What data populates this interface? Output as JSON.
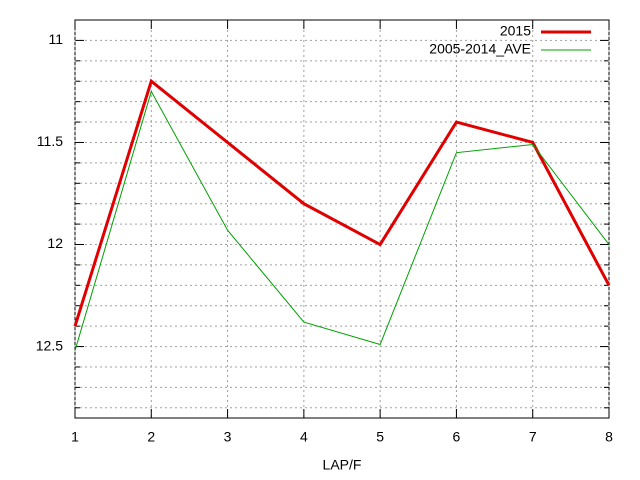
{
  "chart_data": {
    "type": "line",
    "xlabel": "LAP/F",
    "x": [
      1,
      2,
      3,
      4,
      5,
      6,
      7,
      8
    ],
    "series": [
      {
        "name": "2015",
        "color": "#e00000",
        "width": 3,
        "values": [
          12.4,
          11.2,
          11.5,
          11.8,
          12.0,
          11.4,
          11.5,
          12.2
        ]
      },
      {
        "name": "2005-2014_AVE",
        "color": "#00a000",
        "width": 1,
        "values": [
          12.52,
          11.25,
          11.93,
          12.38,
          12.49,
          11.55,
          11.51,
          12.0
        ]
      }
    ],
    "xlim": [
      1,
      8
    ],
    "xticks": [
      1,
      2,
      3,
      4,
      5,
      6,
      7,
      8
    ],
    "ylim": [
      12.85,
      10.9
    ],
    "yticks": [
      11,
      11.5,
      12,
      12.5
    ],
    "yminorticks": [
      11.1,
      11.2,
      11.3,
      11.4,
      11.6,
      11.7,
      11.8,
      11.9,
      12.1,
      12.2,
      12.3,
      12.4,
      12.6,
      12.7,
      12.8
    ],
    "grid": true,
    "legend": "top-right"
  }
}
